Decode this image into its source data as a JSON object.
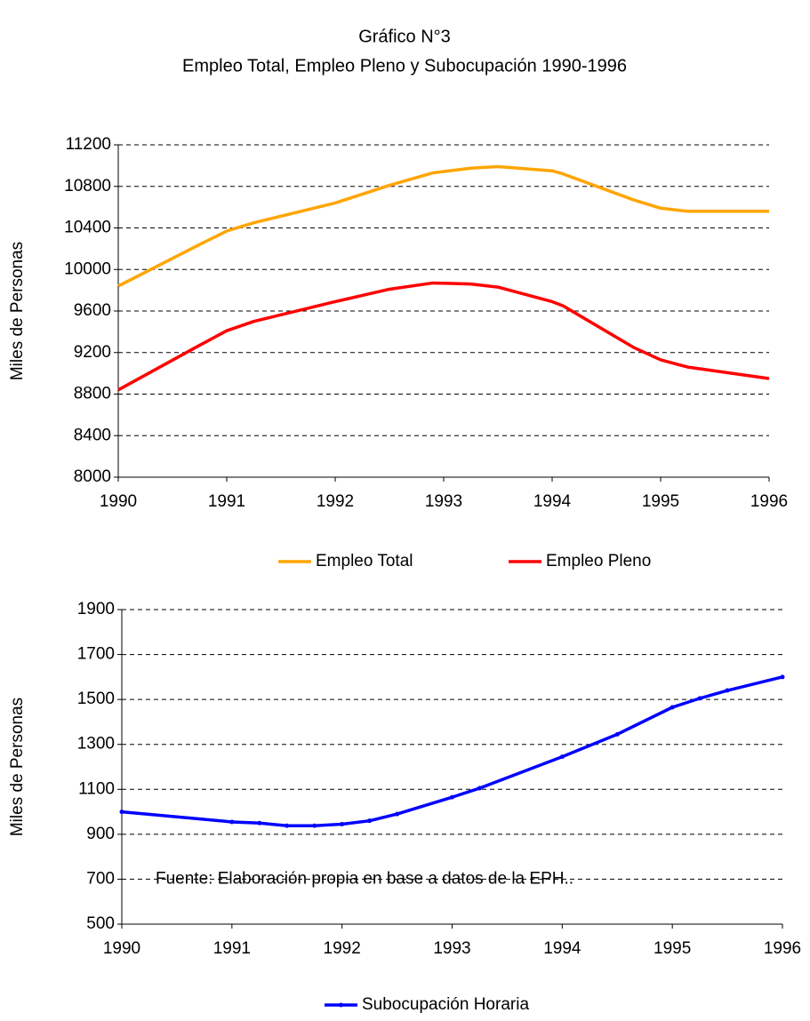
{
  "chart_data": [
    {
      "type": "line",
      "title": "Gráfico N°3",
      "subtitle": "Empleo Total, Empleo Pleno y Subocupación  1990-1996",
      "y_label": "Miles de Personas",
      "x": [
        1990,
        1990.75,
        1991,
        1991.25,
        1992,
        1992.5,
        1992.9,
        1993.25,
        1993.5,
        1994,
        1994.1,
        1994.75,
        1995,
        1995.25,
        1996
      ],
      "series": [
        {
          "name": "Empleo Total",
          "color": "#ffa500",
          "values": [
            9840,
            10240,
            10370,
            10450,
            10640,
            10810,
            10930,
            10975,
            10990,
            10950,
            10920,
            10670,
            10590,
            10560,
            10560
          ]
        },
        {
          "name": "Empleo Pleno",
          "color": "#ff0000",
          "values": [
            8840,
            9270,
            9410,
            9500,
            9690,
            9810,
            9870,
            9860,
            9830,
            9690,
            9650,
            9250,
            9130,
            9060,
            8950
          ]
        }
      ],
      "xlim": [
        1990,
        1996
      ],
      "xticks": [
        1990,
        1991,
        1992,
        1993,
        1994,
        1995,
        1996
      ],
      "ylim": [
        8000,
        11200
      ],
      "yticks": [
        8000,
        8400,
        8800,
        9200,
        9600,
        10000,
        10400,
        10800,
        11200
      ],
      "grid": true,
      "legend": "bottom"
    },
    {
      "type": "line",
      "y_label": "Miles de Personas",
      "annotation": "Fuente: Elaboración propia en base a datos de la EPH..",
      "x": [
        1990,
        1991,
        1991.25,
        1991.5,
        1991.75,
        1992,
        1992.25,
        1992.5,
        1993,
        1993.25,
        1994,
        1994.5,
        1995,
        1995.25,
        1995.5,
        1996
      ],
      "series": [
        {
          "name": "Subocupación Horaria",
          "color": "#0000ff",
          "markers": true,
          "values": [
            1000,
            955,
            950,
            938,
            938,
            945,
            960,
            990,
            1065,
            1105,
            1245,
            1345,
            1465,
            1505,
            1540,
            1600
          ]
        }
      ],
      "xlim": [
        1990,
        1996
      ],
      "xticks": [
        1990,
        1991,
        1992,
        1993,
        1994,
        1995,
        1996
      ],
      "ylim": [
        500,
        1900
      ],
      "yticks": [
        500,
        700,
        900,
        1100,
        1300,
        1500,
        1700,
        1900
      ],
      "grid": true,
      "legend": "bottom"
    }
  ]
}
